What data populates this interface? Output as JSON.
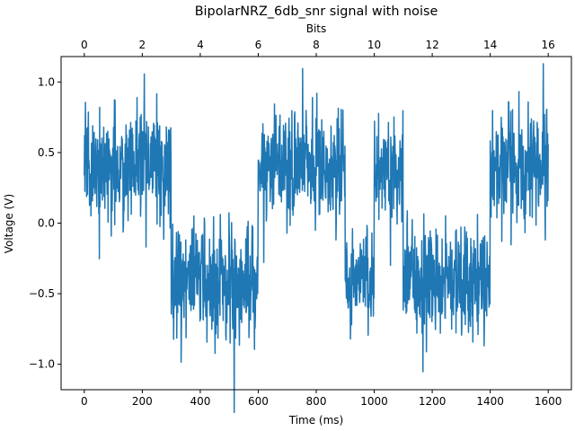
{
  "chart_data": {
    "type": "line",
    "title": "BipolarNRZ_6db_snr signal with noise",
    "xlabel": "Time (ms)",
    "ylabel": "Voltage (V)",
    "top_xlabel": "Bits",
    "xlim": [
      -80,
      1680
    ],
    "ylim": [
      -1.18,
      1.18
    ],
    "xticks": [
      0,
      200,
      400,
      600,
      800,
      1000,
      1200,
      1400,
      1600
    ],
    "xtick_labels": [
      "0",
      "200",
      "400",
      "600",
      "800",
      "1000",
      "1200",
      "1400",
      "1600"
    ],
    "yticks": [
      1.0,
      0.5,
      0.0,
      -0.5,
      -1.0
    ],
    "ytick_labels": [
      "1.0",
      "0.5",
      "0.0",
      "−0.5",
      "−1.0"
    ],
    "top_xticks": [
      0,
      2,
      4,
      6,
      8,
      10,
      12,
      14,
      16
    ],
    "top_xtick_labels": [
      "0",
      "2",
      "4",
      "6",
      "8",
      "10",
      "12",
      "14",
      "16"
    ],
    "bits_per_ms": 0.01,
    "grid": false,
    "line_color": "#1f77b4",
    "series": [
      {
        "bit_duration_ms": 100,
        "levels": [
          0.4,
          0.4,
          0.4,
          -0.4,
          -0.4,
          -0.4,
          0.4,
          0.4,
          0.4,
          -0.4,
          0.4,
          -0.4,
          -0.4,
          -0.4,
          0.4,
          0.4
        ],
        "noise_std": 0.2,
        "samples_per_ms": 1,
        "seed": 7
      }
    ]
  }
}
